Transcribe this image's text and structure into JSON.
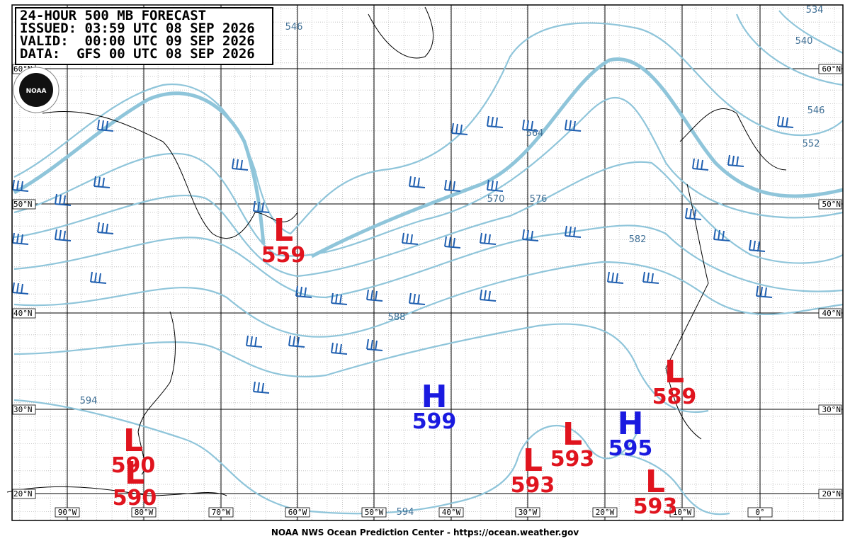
{
  "header": {
    "title": "24-HOUR 500 MB FORECAST",
    "issued": "ISSUED: 03:59 UTC 08 SEP 2026",
    "valid": "VALID:  00:00 UTC 09 SEP 2026",
    "data": "DATA:  GFS 00 UTC 08 SEP 2026"
  },
  "logo": "NOAA",
  "longitude_labels": [
    "90°W",
    "80°W",
    "70°W",
    "60°W",
    "50°W",
    "40°W",
    "30°W",
    "20°W",
    "10°W",
    "0°"
  ],
  "latitude_labels": [
    "60°N",
    "50°N",
    "40°N",
    "30°N",
    "20°N"
  ],
  "contour_labels": [
    "546",
    "534",
    "540",
    "546",
    "552",
    "564",
    "570",
    "576",
    "582",
    "588",
    "594",
    "594"
  ],
  "pressure_centers": [
    {
      "symbol": "L",
      "value": 559
    },
    {
      "symbol": "H",
      "value": 599
    },
    {
      "symbol": "L",
      "value": 589
    },
    {
      "symbol": "H",
      "value": 595
    },
    {
      "symbol": "L",
      "value": 593
    },
    {
      "symbol": "L",
      "value": 593
    },
    {
      "symbol": "L",
      "value": 593
    },
    {
      "symbol": "L",
      "value": 590
    },
    {
      "symbol": "L",
      "value": 590
    }
  ],
  "footer": "NOAA NWS Ocean Prediction Center - https://ocean.weather.gov"
}
